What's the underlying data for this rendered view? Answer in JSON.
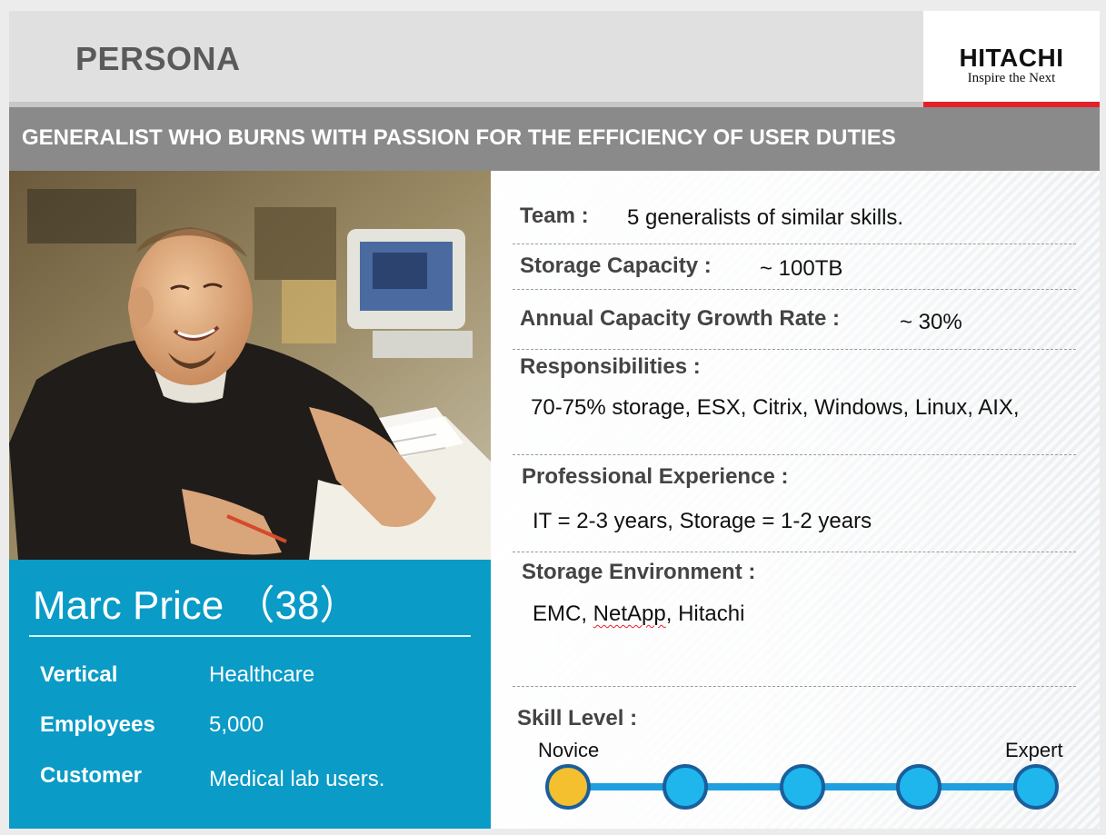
{
  "header": {
    "title": "PERSONA",
    "logo_name": "HITACHI",
    "logo_tagline": "Inspire the Next"
  },
  "subtitle": "GENERALIST WHO BURNS WITH PASSION FOR THE EFFICIENCY OF USER DUTIES",
  "person": {
    "name": "Marc Price （38）",
    "details": [
      {
        "label": "Vertical",
        "value": "Healthcare"
      },
      {
        "label": "Employees",
        "value": "5,000"
      },
      {
        "label": "Customer",
        "value": "Medical lab users."
      }
    ]
  },
  "profile": {
    "team": {
      "label": "Team :",
      "value": "5 generalists of similar skills."
    },
    "storage_capacity": {
      "label": "Storage Capacity :",
      "value": "~ 100TB"
    },
    "growth_rate": {
      "label": "Annual Capacity Growth Rate :",
      "value": "~ 30%"
    },
    "responsibilities": {
      "label": "Responsibilities :",
      "value": "70-75% storage, ESX, Citrix, Windows, Linux, AIX,"
    },
    "experience": {
      "label": "Professional Experience :",
      "value": "IT = 2-3 years, Storage = 1-2 years"
    },
    "environment": {
      "label": "Storage Environment :",
      "value_parts": [
        "EMC, ",
        "NetApp",
        ", Hitachi"
      ]
    }
  },
  "skill": {
    "label": "Skill Level :",
    "min_label": "Novice",
    "max_label": "Expert",
    "levels": 5,
    "current_level": 1
  },
  "colors": {
    "card_blue": "#0a9bc7",
    "logo_red": "#e6202a",
    "dot_active": "#f4c030",
    "dot_inactive": "#1fb6ee",
    "header_band": "#8a8a8a"
  }
}
